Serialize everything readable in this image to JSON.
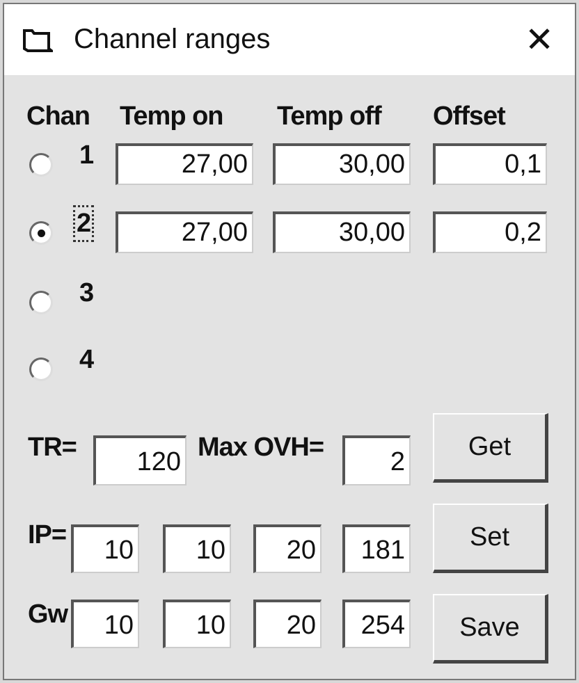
{
  "window": {
    "title": "Channel ranges",
    "icon": "folder-icon",
    "close": "✕"
  },
  "headers": {
    "chan": "Chan",
    "temp_on": "Temp on",
    "temp_off": "Temp off",
    "offset": "Offset"
  },
  "channels": [
    {
      "label": "1",
      "selected": false,
      "temp_on": "27,00",
      "temp_off": "30,00",
      "offset": "0,1"
    },
    {
      "label": "2",
      "selected": true,
      "temp_on": "27,00",
      "temp_off": "30,00",
      "offset": "0,2"
    },
    {
      "label": "3",
      "selected": false
    },
    {
      "label": "4",
      "selected": false
    }
  ],
  "tr": {
    "label": "TR=",
    "value": "120"
  },
  "max_ovh": {
    "label": "Max OVH=",
    "value": "2"
  },
  "ip": {
    "label": "IP=",
    "octets": [
      "10",
      "10",
      "20",
      "181"
    ]
  },
  "gw": {
    "label": "Gw",
    "octets": [
      "10",
      "10",
      "20",
      "254"
    ]
  },
  "buttons": {
    "get": "Get",
    "set": "Set",
    "save": "Save"
  }
}
